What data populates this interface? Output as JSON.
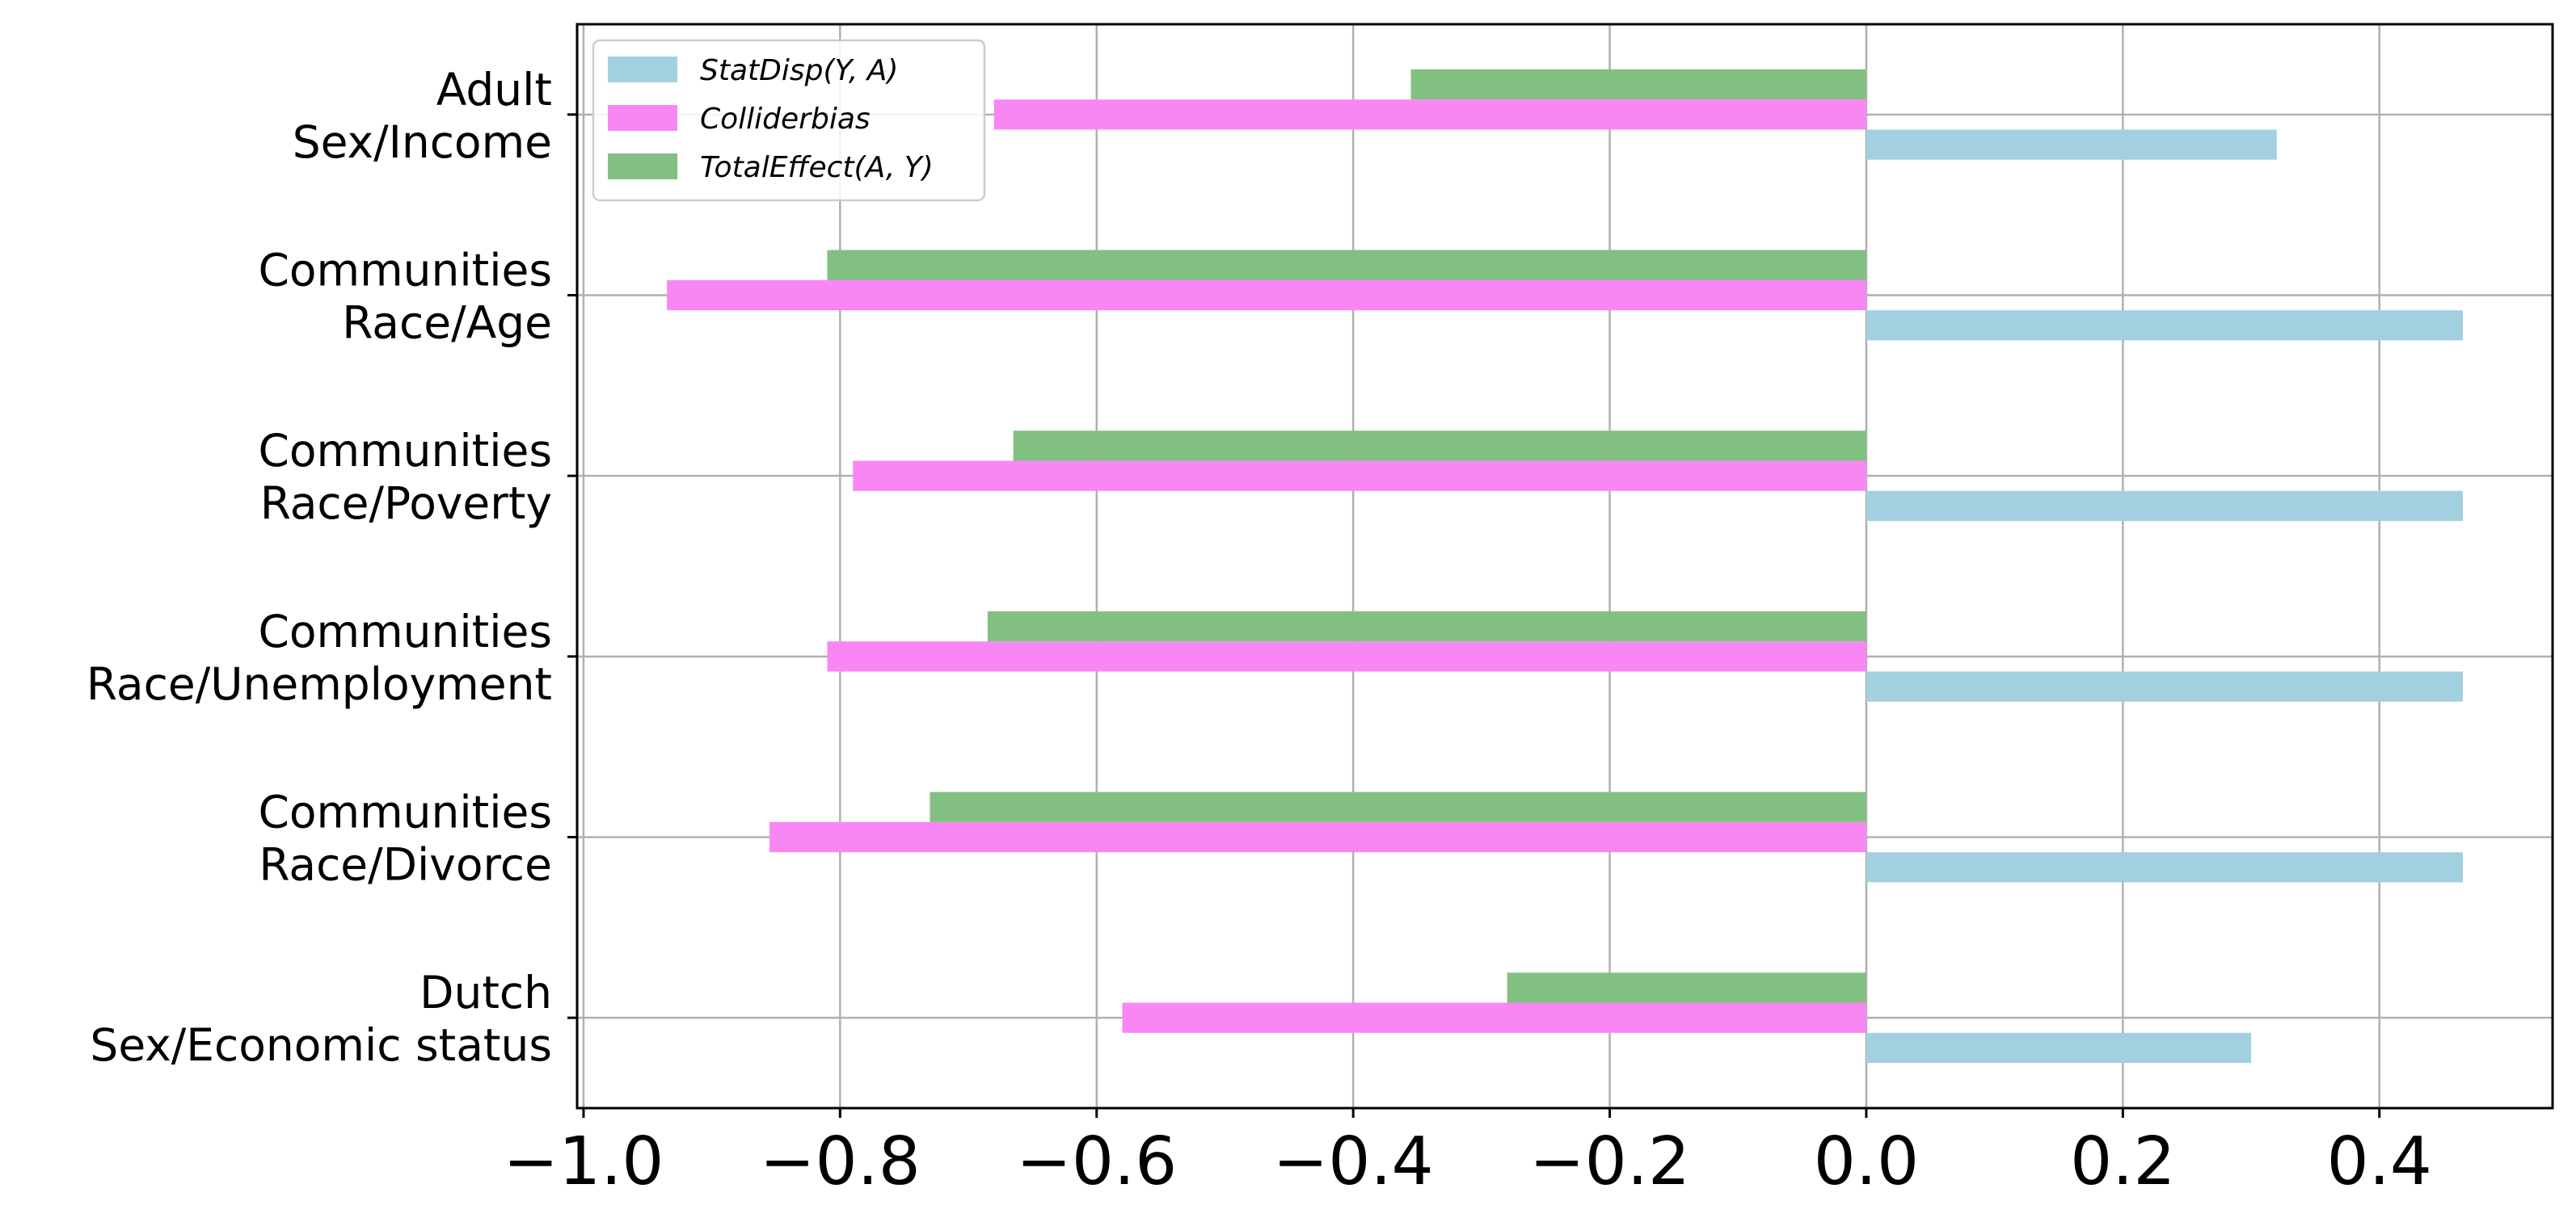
{
  "chart_data": {
    "type": "bar",
    "orientation": "horizontal",
    "categories": [
      [
        "Adult",
        "Sex/Income"
      ],
      [
        "Communities",
        "Race/Age"
      ],
      [
        "Communities",
        "Race/Poverty"
      ],
      [
        "Communities",
        "Race/Unemployment"
      ],
      [
        "Communities",
        "Race/Divorce"
      ],
      [
        "Dutch",
        "Sex/Economic status"
      ]
    ],
    "series": [
      {
        "name": "StatDisp(Y, A)",
        "color": "#a3d0e0",
        "values": [
          0.32,
          0.465,
          0.465,
          0.465,
          0.465,
          0.3
        ]
      },
      {
        "name": "Colliderbias",
        "color": "#f987f3",
        "values": [
          -0.68,
          -0.935,
          -0.79,
          -0.81,
          -0.855,
          -0.58
        ]
      },
      {
        "name": "TotalEffect(A, Y)",
        "color": "#82c082",
        "values": [
          -0.355,
          -0.81,
          -0.665,
          -0.685,
          -0.73,
          -0.28
        ]
      }
    ],
    "xlim": [
      -1.005,
      0.535
    ],
    "xticks": [
      -1.0,
      -0.8,
      -0.6,
      -0.4,
      -0.2,
      0.0,
      0.2,
      0.4
    ],
    "xtick_labels": [
      "−1.0",
      "−0.8",
      "−0.6",
      "−0.4",
      "−0.2",
      "0.0",
      "0.2",
      "0.4"
    ],
    "grid": true,
    "legend_position": "top-left",
    "title": "",
    "xlabel": "",
    "ylabel": ""
  }
}
